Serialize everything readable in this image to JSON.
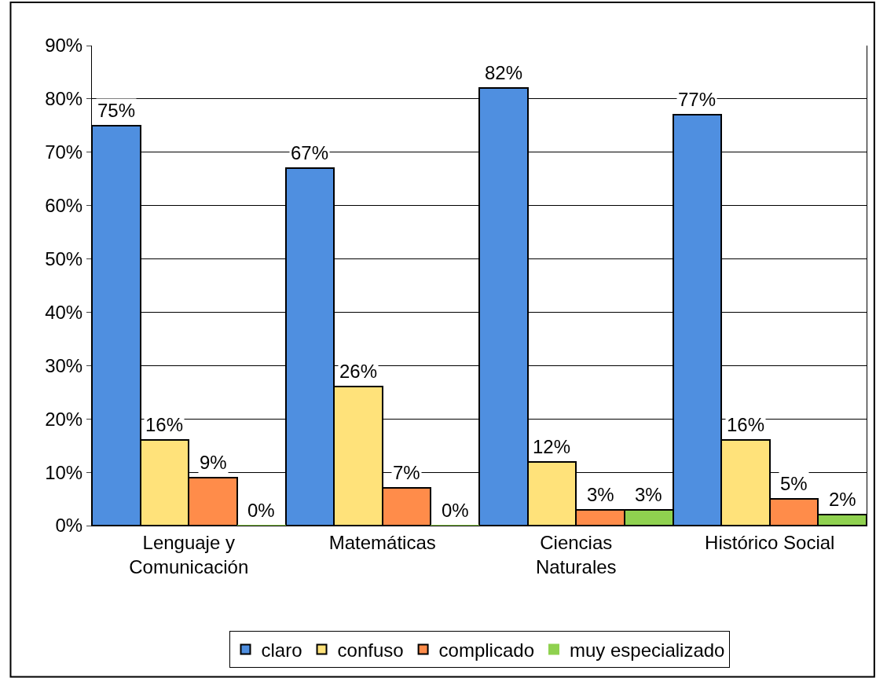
{
  "chart_data": {
    "type": "bar",
    "categories": [
      "Lenguaje y\nComunicación",
      "Matemáticas",
      "Ciencias\nNaturales",
      "Histórico Social"
    ],
    "series": [
      {
        "name": "claro",
        "color": "#4f8fe0",
        "values": [
          75,
          67,
          82,
          77
        ],
        "value_labels": [
          "75%",
          "67%",
          "82%",
          "77%"
        ]
      },
      {
        "name": "confuso",
        "color": "#ffe27a",
        "values": [
          16,
          26,
          12,
          16
        ],
        "value_labels": [
          "16%",
          "26%",
          "12%",
          "16%"
        ]
      },
      {
        "name": "complicado",
        "color": "#ff8c4a",
        "values": [
          9,
          7,
          3,
          5
        ],
        "value_labels": [
          "9%",
          "7%",
          "3%",
          "5%"
        ]
      },
      {
        "name": "muy especializado",
        "color": "#8fd14f",
        "values": [
          0,
          0,
          3,
          2
        ],
        "value_labels": [
          "0%",
          "0%",
          "3%",
          "2%"
        ]
      }
    ],
    "ylim": [
      0,
      90
    ],
    "yticks": [
      {
        "value": 0,
        "label": "0%"
      },
      {
        "value": 10,
        "label": "10%"
      },
      {
        "value": 20,
        "label": "20%"
      },
      {
        "value": 30,
        "label": "30%"
      },
      {
        "value": 40,
        "label": "40%"
      },
      {
        "value": 50,
        "label": "50%"
      },
      {
        "value": 60,
        "label": "60%"
      },
      {
        "value": 70,
        "label": "70%"
      },
      {
        "value": 80,
        "label": "80%"
      },
      {
        "value": 90,
        "label": "90%"
      }
    ],
    "grid": "y",
    "legend": "bottom"
  }
}
